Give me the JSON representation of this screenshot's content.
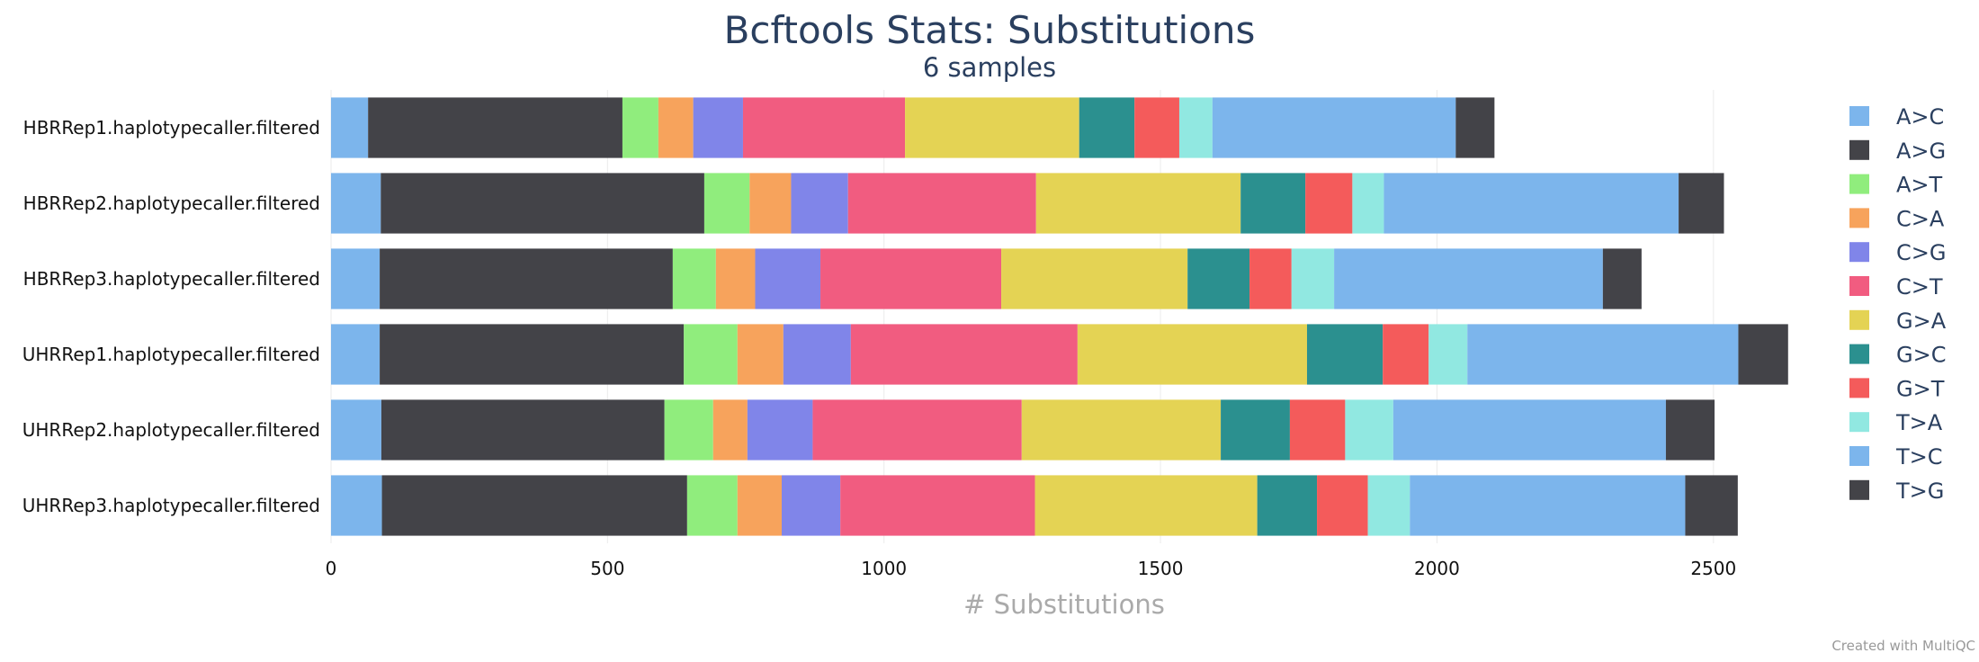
{
  "chart_data": {
    "type": "bar",
    "orientation": "horizontal",
    "stacked": true,
    "title": "Bcftools Stats: Substitutions",
    "subtitle": "6 samples",
    "xlabel": "# Substitutions",
    "ylabel": "",
    "xlim": [
      0,
      2650
    ],
    "xticks": [
      0,
      500,
      1000,
      1500,
      2000,
      2500
    ],
    "grid": true,
    "legend_position": "right",
    "credit": "Created with MultiQC",
    "categories": [
      "HBRRep1.haplotypecaller.filtered",
      "HBRRep2.haplotypecaller.filtered",
      "HBRRep3.haplotypecaller.filtered",
      "UHRRep1.haplotypecaller.filtered",
      "UHRRep2.haplotypecaller.filtered",
      "UHRRep3.haplotypecaller.filtered"
    ],
    "series": [
      {
        "name": "A>C",
        "color": "#7cb5ec",
        "values": [
          67,
          90,
          88,
          88,
          91,
          92
        ]
      },
      {
        "name": "A>G",
        "color": "#434348",
        "values": [
          460,
          585,
          530,
          550,
          512,
          552
        ]
      },
      {
        "name": "A>T",
        "color": "#90ed7d",
        "values": [
          65,
          82,
          78,
          97,
          88,
          91
        ]
      },
      {
        "name": "C>A",
        "color": "#f7a35c",
        "values": [
          63,
          75,
          71,
          83,
          62,
          80
        ]
      },
      {
        "name": "C>G",
        "color": "#8085e9",
        "values": [
          90,
          103,
          118,
          122,
          118,
          106
        ]
      },
      {
        "name": "C>T",
        "color": "#f15c80",
        "values": [
          293,
          340,
          327,
          410,
          378,
          352
        ]
      },
      {
        "name": "G>A",
        "color": "#e4d354",
        "values": [
          315,
          370,
          337,
          415,
          360,
          402
        ]
      },
      {
        "name": "G>C",
        "color": "#2b908f",
        "values": [
          100,
          117,
          112,
          137,
          125,
          108
        ]
      },
      {
        "name": "G>T",
        "color": "#f45b5b",
        "values": [
          81,
          85,
          76,
          83,
          100,
          92
        ]
      },
      {
        "name": "T>A",
        "color": "#91e8e1",
        "values": [
          60,
          57,
          77,
          70,
          87,
          76
        ]
      },
      {
        "name": "T>C",
        "color": "#7cb5ec",
        "values": [
          440,
          533,
          486,
          490,
          493,
          498
        ]
      },
      {
        "name": "T>G",
        "color": "#434348",
        "values": [
          70,
          82,
          70,
          90,
          88,
          95
        ]
      }
    ]
  }
}
